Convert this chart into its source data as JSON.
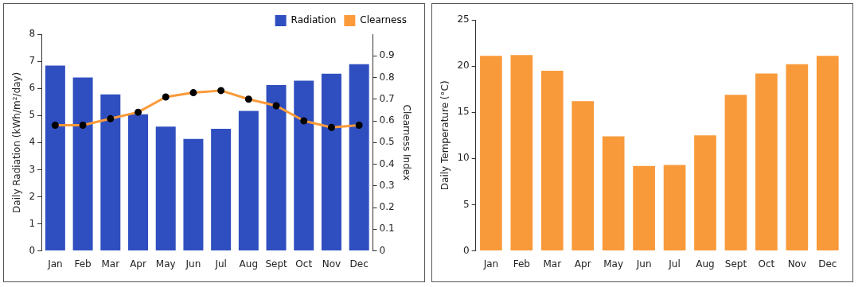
{
  "chart_data": [
    {
      "type": "bar",
      "categories": [
        "Jan",
        "Feb",
        "Mar",
        "Apr",
        "May",
        "Jun",
        "Jul",
        "Aug",
        "Sept",
        "Oct",
        "Nov",
        "Dec"
      ],
      "ylabel": "Daily Radiation (kWh/m²/day)",
      "y2label": "Clearness Index",
      "ylim": [
        0,
        8
      ],
      "yticks": [
        0,
        1,
        2,
        3,
        4,
        5,
        6,
        7,
        8
      ],
      "y2lim": [
        0,
        1
      ],
      "y2ticks": [
        0,
        0.1,
        0.2,
        0.3,
        0.4,
        0.5,
        0.6,
        0.7,
        0.8,
        0.9
      ],
      "grid": false,
      "legend": "top right",
      "marker": "circle",
      "series": [
        {
          "name": "Radiation",
          "color": "#2f4fc0",
          "values": [
            6.84,
            6.4,
            5.78,
            5.04,
            4.59,
            4.13,
            4.51,
            5.17,
            6.12,
            6.28,
            6.54,
            6.89
          ]
        },
        {
          "name": "Clearness",
          "type": "line",
          "axis": "y2",
          "color": "#fb9a3a",
          "values": [
            0.58,
            0.58,
            0.61,
            0.64,
            0.71,
            0.73,
            0.74,
            0.7,
            0.67,
            0.6,
            0.57,
            0.58
          ]
        }
      ]
    },
    {
      "type": "bar",
      "categories": [
        "Jan",
        "Feb",
        "Mar",
        "Apr",
        "May",
        "Jun",
        "Jul",
        "Aug",
        "Sept",
        "Oct",
        "Nov",
        "Dec"
      ],
      "ylabel": "Daily Temperature (°C)",
      "ylim": [
        0,
        25
      ],
      "yticks": [
        0,
        5,
        10,
        15,
        20,
        25
      ],
      "grid": false,
      "legend": false,
      "series": [
        {
          "color": "#f99a3a",
          "values": [
            21.1,
            21.2,
            19.5,
            16.2,
            12.4,
            9.2,
            9.3,
            12.5,
            16.9,
            19.2,
            20.2,
            21.1
          ]
        }
      ]
    }
  ]
}
